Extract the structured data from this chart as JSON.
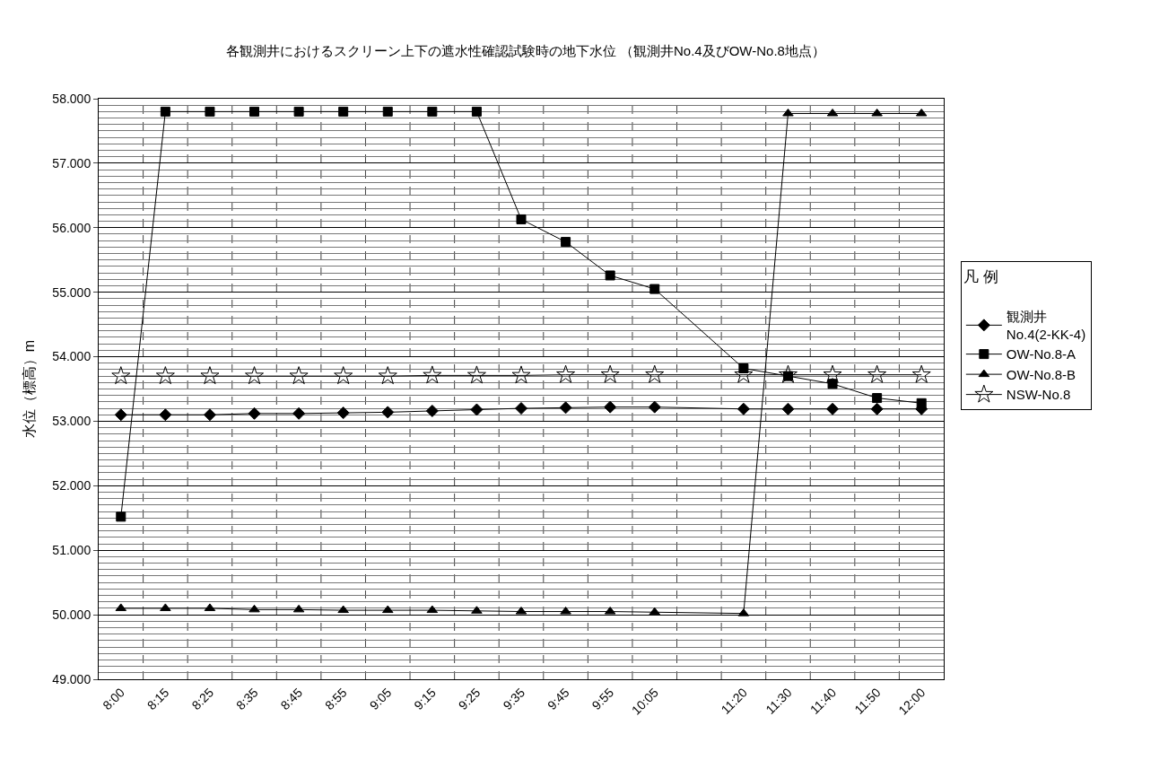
{
  "chart_data": {
    "type": "line",
    "title": "各観測井におけるスクリーン上下の遮水性確認試験時の地下水位 （観測井No.4及びOW-No.8地点）",
    "ylabel": "水位（標高）m",
    "legend_title": "凡 例",
    "categories": [
      "8:00",
      "8:15",
      "8:25",
      "8:35",
      "8:45",
      "8:55",
      "9:05",
      "9:15",
      "9:25",
      "9:35",
      "9:45",
      "9:55",
      "10:05",
      null,
      "11:20",
      "11:30",
      "11:40",
      "11:50",
      "12:00"
    ],
    "series": [
      {
        "name": "観測井\nNo.4(2-KK-4)",
        "color": "#000000",
        "marker": "diamond",
        "values": [
          53.1,
          53.1,
          53.1,
          53.12,
          53.12,
          53.13,
          53.14,
          53.16,
          53.18,
          53.2,
          53.21,
          53.22,
          53.22,
          null,
          53.19,
          53.19,
          53.19,
          53.19,
          53.19
        ]
      },
      {
        "name": "OW-No.8-A",
        "color": "#000000",
        "marker": "square",
        "values": [
          51.52,
          57.8,
          57.8,
          57.8,
          57.8,
          57.8,
          57.8,
          57.8,
          57.8,
          56.13,
          55.78,
          55.26,
          55.05,
          null,
          53.82,
          53.7,
          53.58,
          53.36,
          53.28
        ]
      },
      {
        "name": "OW-No.8-B",
        "color": "#000000",
        "marker": "triangle",
        "values": [
          50.1,
          50.1,
          50.1,
          50.08,
          50.08,
          50.07,
          50.07,
          50.07,
          50.06,
          50.05,
          50.05,
          50.05,
          50.04,
          null,
          50.02,
          57.77,
          57.77,
          57.77,
          57.77
        ]
      },
      {
        "name": "NSW-No.8",
        "color": "#000000",
        "marker": "star",
        "values": [
          53.7,
          53.7,
          53.7,
          53.7,
          53.7,
          53.7,
          53.7,
          53.71,
          53.71,
          53.71,
          53.72,
          53.72,
          53.72,
          null,
          53.72,
          53.72,
          53.72,
          53.72,
          53.72
        ]
      }
    ],
    "ylim": [
      49,
      58
    ],
    "yticks": [
      {
        "value": 49,
        "label": "49.000"
      },
      {
        "value": 50,
        "label": "50.000"
      },
      {
        "value": 51,
        "label": "51.000"
      },
      {
        "value": 52,
        "label": "52.000"
      },
      {
        "value": 53,
        "label": "53.000"
      },
      {
        "value": 54,
        "label": "54.000"
      },
      {
        "value": 55,
        "label": "55.000"
      },
      {
        "value": 56,
        "label": "56.000"
      },
      {
        "value": 57,
        "label": "57.000"
      },
      {
        "value": 58,
        "label": "58.000"
      }
    ],
    "grid": true,
    "legend": "right",
    "line_style": "solid"
  }
}
